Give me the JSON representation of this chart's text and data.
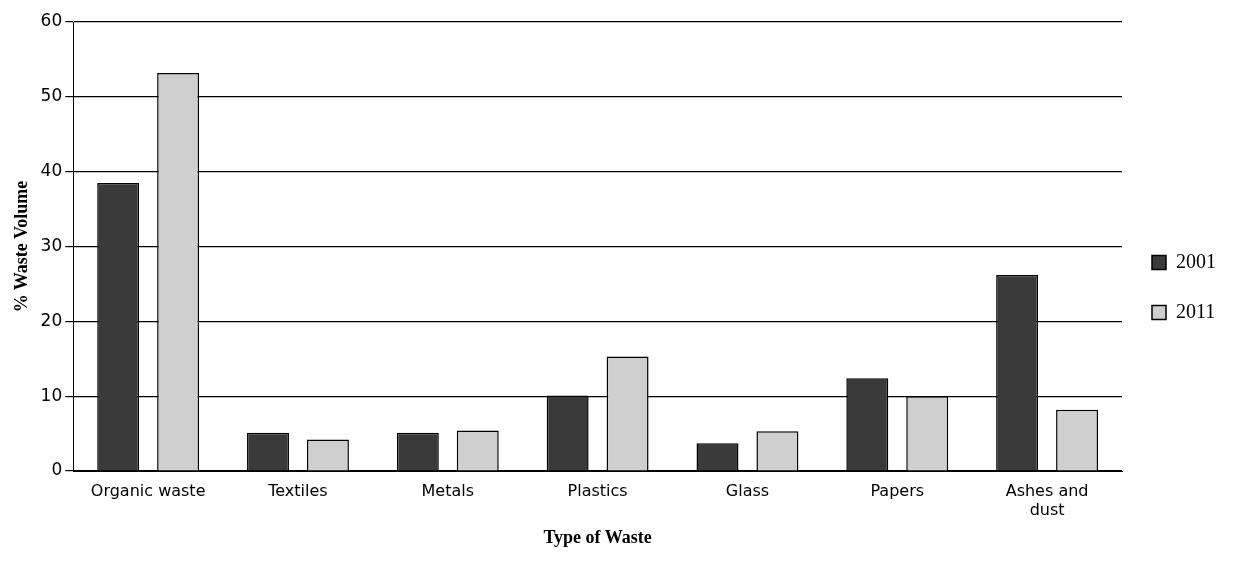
{
  "chart_data": {
    "type": "bar",
    "xlabel": "Type of Waste",
    "ylabel": "% Waste Volume",
    "categories": [
      "Organic waste",
      "Textiles",
      "Metals",
      "Plastics",
      "Glass",
      "Papers",
      "Ashes and dust"
    ],
    "series": [
      {
        "name": "2001",
        "color": "#3a3a3a",
        "values": [
          38.5,
          5.1,
          5.1,
          10.1,
          3.7,
          12.4,
          26.2
        ]
      },
      {
        "name": "2011",
        "color": "#cfcfcf",
        "values": [
          53.2,
          4.2,
          5.4,
          15.3,
          5.3,
          10.0,
          8.2
        ]
      }
    ],
    "ylim": [
      0,
      60
    ],
    "yticks": [
      0,
      10,
      20,
      30,
      40,
      50,
      60
    ],
    "grid": "y",
    "legend": "right"
  }
}
